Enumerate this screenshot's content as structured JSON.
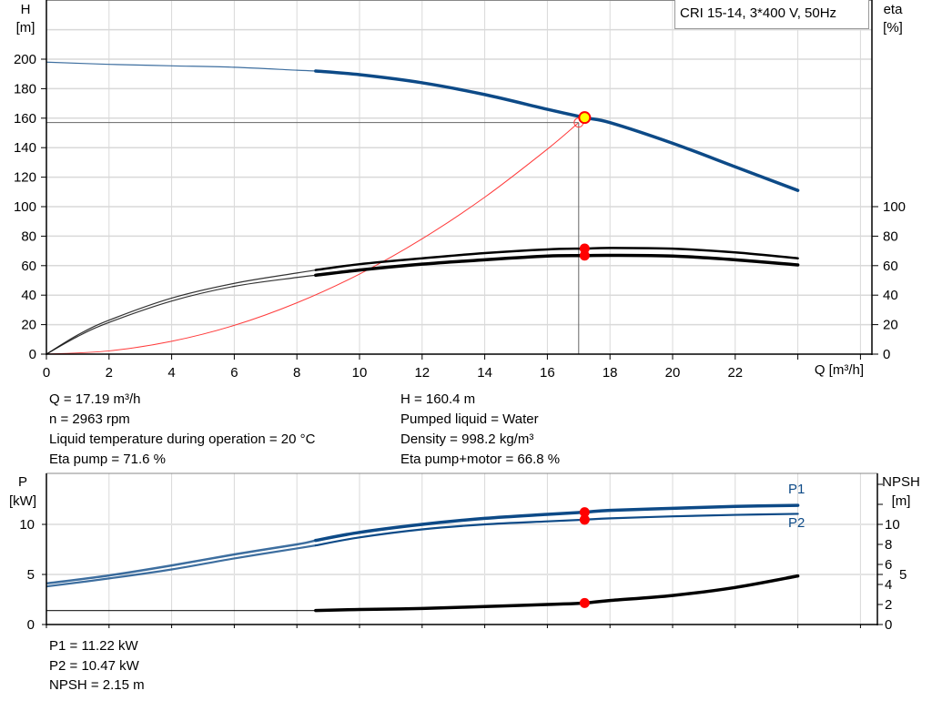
{
  "legend_title": "CRI 15-14, 3*400 V, 50Hz",
  "colors": {
    "head": "#0d4a87",
    "efficiency": "#000000",
    "system": "#ff3b3b",
    "duty_point_fill": "#ffff00",
    "duty_point_stroke": "#ff0000",
    "marker": "#ff0000",
    "grid": "#d9d9d9"
  },
  "chart_data": [
    {
      "type": "line",
      "title": "",
      "xlabel": "Q [m³/h]",
      "ylabel_left": "H\n[m]",
      "ylabel_left_lines": [
        "H",
        "[m]"
      ],
      "ylabel_right_lines": [
        "eta",
        "[%]"
      ],
      "xlim": [
        0,
        26
      ],
      "ylim_left": [
        0,
        240
      ],
      "ylim_right": [
        0,
        240
      ],
      "x_ticks": [
        0,
        2,
        4,
        6,
        8,
        10,
        12,
        14,
        16,
        18,
        20,
        22
      ],
      "y_ticks_left": [
        0,
        20,
        40,
        60,
        80,
        100,
        120,
        140,
        160,
        180,
        200
      ],
      "y_ticks_right": [
        0,
        20,
        40,
        60,
        80,
        100
      ],
      "grid": true,
      "thick_from_x": 8.6,
      "series": [
        {
          "key": "H",
          "axis": "left",
          "x": [
            0,
            2,
            4,
            6,
            8,
            8.6,
            10,
            12,
            14,
            16,
            17.19,
            18,
            20,
            22,
            24
          ],
          "y": [
            198,
            196.5,
            195.5,
            194.5,
            192.5,
            192,
            189.5,
            184,
            176,
            166,
            160.4,
            157,
            143,
            127,
            111
          ]
        },
        {
          "key": "eta_pump",
          "axis": "right",
          "x": [
            0,
            1,
            2,
            4,
            6,
            8,
            8.6,
            10,
            12,
            14,
            16,
            17.19,
            18,
            20,
            22,
            24
          ],
          "y": [
            0,
            13,
            23,
            38,
            48,
            55,
            57,
            61,
            65,
            68.5,
            71,
            71.6,
            72,
            71.5,
            69,
            65
          ]
        },
        {
          "key": "eta_pump_motor",
          "axis": "right",
          "x": [
            0,
            1,
            2,
            4,
            6,
            8,
            8.6,
            10,
            12,
            14,
            16,
            17.19,
            18,
            20,
            22,
            24
          ],
          "y": [
            0,
            12,
            21.5,
            36,
            46,
            52,
            53.5,
            57,
            61,
            64,
            66.5,
            66.8,
            67,
            66.5,
            64,
            60.5
          ]
        },
        {
          "key": "system_curve",
          "axis": "left",
          "x": [
            0,
            2,
            4,
            6,
            8,
            10,
            12,
            14,
            16,
            17.0
          ],
          "y": [
            0,
            2.2,
            8.7,
            19.5,
            34.8,
            54.3,
            78.2,
            106.4,
            139,
            157
          ]
        }
      ],
      "duty_point": {
        "Q": 17.19,
        "H": 160.4
      },
      "system_point": {
        "Q": 17.0,
        "H": 157
      },
      "markers_right": [
        71.6,
        66.8
      ]
    },
    {
      "type": "line",
      "title": "",
      "ylabel_left_lines": [
        "P",
        "[kW]"
      ],
      "ylabel_right_lines": [
        "NPSH",
        "[m]"
      ],
      "xlim": [
        0,
        26
      ],
      "ylim_left": [
        0,
        15
      ],
      "ylim_right": [
        0,
        15
      ],
      "y_ticks_left": [
        0,
        5,
        10
      ],
      "y_ticks_right": [
        0,
        2,
        4,
        5,
        6,
        8,
        10
      ],
      "y_ticks_right_unlabeled": [
        12,
        14
      ],
      "grid": true,
      "thick_from_x": 8.6,
      "series": [
        {
          "key": "P1",
          "name": "P1",
          "x": [
            0,
            2,
            4,
            6,
            8,
            8.6,
            10,
            12,
            14,
            16,
            17.19,
            18,
            20,
            22,
            24
          ],
          "y": [
            4.1,
            4.9,
            5.9,
            7.0,
            8.0,
            8.4,
            9.2,
            10.0,
            10.6,
            11.0,
            11.22,
            11.4,
            11.6,
            11.8,
            11.9
          ]
        },
        {
          "key": "P2",
          "name": "P2",
          "x": [
            0,
            2,
            4,
            6,
            8,
            8.6,
            10,
            12,
            14,
            16,
            17.19,
            18,
            20,
            22,
            24
          ],
          "y": [
            3.8,
            4.6,
            5.5,
            6.6,
            7.6,
            7.9,
            8.7,
            9.5,
            10.0,
            10.3,
            10.47,
            10.6,
            10.8,
            10.95,
            11.05
          ]
        },
        {
          "key": "NPSH",
          "x": [
            0,
            4,
            8,
            8.6,
            10,
            12,
            14,
            16,
            17.19,
            18,
            20,
            22,
            24
          ],
          "y": [
            1.4,
            1.4,
            1.4,
            1.4,
            1.5,
            1.6,
            1.8,
            2.0,
            2.15,
            2.4,
            2.9,
            3.7,
            4.85
          ]
        }
      ],
      "markers": [
        {
          "x": 17.19,
          "y": 11.22
        },
        {
          "x": 17.19,
          "y": 10.47
        },
        {
          "x": 17.19,
          "y": 2.15
        }
      ]
    }
  ],
  "info_top": {
    "left": [
      "Q = 17.19 m³/h",
      "n = 2963 rpm",
      "Liquid temperature during operation = 20 °C",
      "Eta pump = 71.6 %"
    ],
    "right": [
      "H = 160.4 m",
      "Pumped liquid = Water",
      "Density = 998.2 kg/m³",
      "Eta pump+motor = 66.8 %"
    ]
  },
  "info_bottom": [
    "P1 = 11.22 kW",
    "P2 = 10.47 kW",
    "NPSH = 2.15 m"
  ]
}
